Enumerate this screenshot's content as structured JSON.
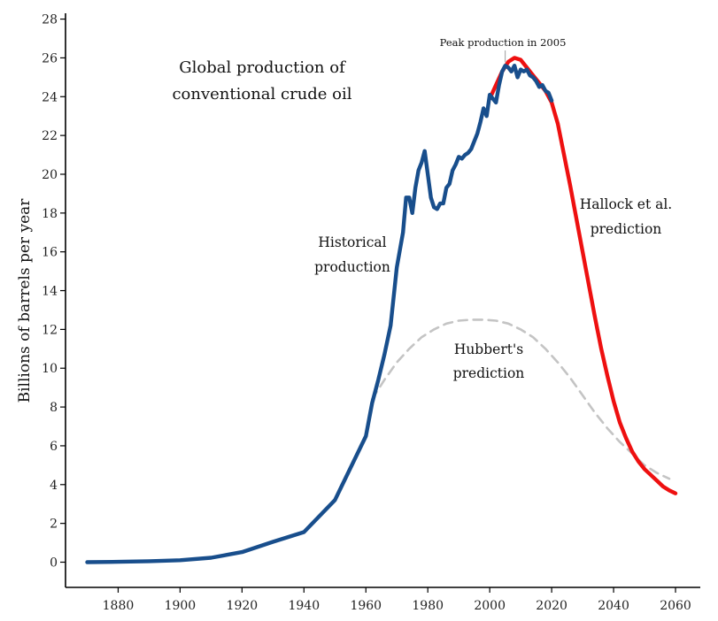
{
  "chart_data": {
    "type": "line",
    "title_lines": [
      "Global production of",
      "conventional crude oil"
    ],
    "xlabel": "",
    "ylabel": "Billions of barrels per year",
    "xlim": [
      1863,
      2068
    ],
    "ylim": [
      -1.3,
      28.3
    ],
    "x_ticks": [
      1880,
      1900,
      1920,
      1940,
      1960,
      1980,
      2000,
      2020,
      2040,
      2060
    ],
    "y_ticks": [
      0,
      2,
      4,
      6,
      8,
      10,
      12,
      14,
      16,
      18,
      20,
      22,
      24,
      26,
      28
    ],
    "grid": false,
    "colors": {
      "historical": "#184e8c",
      "hallock": "#ee1010",
      "hubbert": "#c4c4c4",
      "axis": "#000000"
    },
    "series": [
      {
        "name": "Historical production",
        "style": "solid",
        "x": [
          1870,
          1880,
          1890,
          1900,
          1910,
          1920,
          1930,
          1940,
          1950,
          1960,
          1962,
          1964,
          1966,
          1968,
          1970,
          1972,
          1973,
          1974,
          1975,
          1976,
          1977,
          1978,
          1979,
          1980,
          1981,
          1982,
          1983,
          1984,
          1985,
          1986,
          1987,
          1988,
          1989,
          1990,
          1991,
          1992,
          1993,
          1994,
          1995,
          1996,
          1997,
          1998,
          1999,
          2000,
          2001,
          2002,
          2003,
          2004,
          2005,
          2006,
          2007,
          2008,
          2009,
          2010,
          2011,
          2012,
          2013,
          2014,
          2015,
          2016,
          2017,
          2018,
          2019,
          2020
        ],
        "y": [
          0.0,
          0.02,
          0.05,
          0.1,
          0.23,
          0.52,
          1.05,
          1.55,
          3.2,
          6.5,
          8.2,
          9.4,
          10.7,
          12.2,
          15.2,
          17.0,
          18.8,
          18.8,
          18.0,
          19.3,
          20.2,
          20.6,
          21.2,
          20.0,
          18.8,
          18.3,
          18.2,
          18.5,
          18.5,
          19.3,
          19.5,
          20.2,
          20.5,
          20.9,
          20.8,
          21.0,
          21.1,
          21.3,
          21.7,
          22.1,
          22.7,
          23.4,
          23.0,
          24.1,
          23.9,
          23.7,
          24.6,
          25.3,
          25.6,
          25.5,
          25.3,
          25.6,
          25.0,
          25.4,
          25.3,
          25.4,
          25.1,
          25.0,
          24.8,
          24.5,
          24.6,
          24.3,
          24.2,
          23.8
        ]
      },
      {
        "name": "Hallock et al. prediction",
        "style": "solid",
        "x": [
          2000,
          2002,
          2004,
          2006,
          2008,
          2010,
          2012,
          2014,
          2016,
          2018,
          2020,
          2022,
          2024,
          2026,
          2028,
          2030,
          2032,
          2034,
          2036,
          2038,
          2040,
          2042,
          2044,
          2046,
          2048,
          2050,
          2052,
          2054,
          2056,
          2058,
          2060
        ],
        "y": [
          23.9,
          24.6,
          25.3,
          25.8,
          26.0,
          25.9,
          25.5,
          25.1,
          24.7,
          24.3,
          23.7,
          22.6,
          21.0,
          19.4,
          17.7,
          16.0,
          14.3,
          12.6,
          11.0,
          9.6,
          8.3,
          7.2,
          6.4,
          5.7,
          5.2,
          4.8,
          4.5,
          4.2,
          3.9,
          3.7,
          3.55
        ]
      },
      {
        "name": "Hubbert's prediction",
        "style": "dashed",
        "x": [
          1962,
          1966,
          1970,
          1974,
          1978,
          1982,
          1986,
          1990,
          1994,
          1998,
          2002,
          2006,
          2010,
          2014,
          2018,
          2022,
          2026,
          2030,
          2034,
          2038,
          2042,
          2046,
          2050,
          2054,
          2058
        ],
        "y": [
          8.4,
          9.4,
          10.3,
          11.0,
          11.6,
          12.0,
          12.3,
          12.45,
          12.5,
          12.5,
          12.45,
          12.3,
          12.0,
          11.6,
          11.0,
          10.3,
          9.5,
          8.6,
          7.7,
          6.9,
          6.2,
          5.6,
          5.0,
          4.6,
          4.3
        ]
      }
    ],
    "annotations": {
      "peak": {
        "text": "Peak production in 2005",
        "x": 2005,
        "y": 25.5
      },
      "historical": {
        "lines": [
          "Historical",
          "production"
        ]
      },
      "hallock": {
        "lines": [
          "Hallock et al.",
          "prediction"
        ]
      },
      "hubbert": {
        "lines": [
          "Hubbert's",
          "prediction"
        ]
      }
    }
  }
}
